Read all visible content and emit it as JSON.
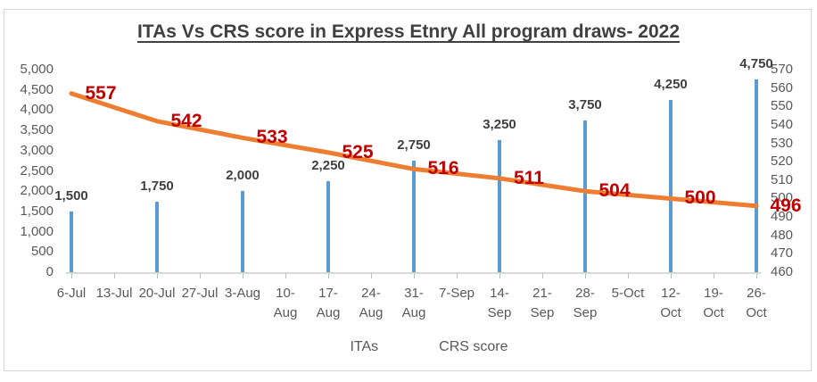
{
  "title": "ITAs Vs CRS score in Express Etnry All program draws- 2022",
  "colors": {
    "bar": "#5B9BD5",
    "line": "#ED7D31",
    "crs_label": "#C00000",
    "bar_label": "#404040",
    "axis_text": "#595959",
    "axis_line": "#D9D9D9"
  },
  "legend": {
    "items": [
      {
        "label": "ITAs",
        "swatch": "bar-swatch",
        "color": "#5B9BD5"
      },
      {
        "label": "CRS score",
        "swatch": "line-swatch",
        "color": "#ED7D31"
      }
    ]
  },
  "chart_data": {
    "type": "bar+line combo",
    "title": "ITAs Vs CRS score in Express Etnry All program draws- 2022",
    "categories": [
      "6-Jul",
      "13-Jul",
      "20-Jul",
      "27-Jul",
      "3-Aug",
      "10-Aug",
      "17-Aug",
      "24-Aug",
      "31-Aug",
      "7-Sep",
      "14-Sep",
      "21-Sep",
      "28-Sep",
      "5-Oct",
      "12-Oct",
      "19-Oct",
      "26-Oct"
    ],
    "x_tick_display": [
      [
        "6-Jul"
      ],
      [
        "13-Jul"
      ],
      [
        "20-Jul"
      ],
      [
        "27-Jul"
      ],
      [
        "3-Aug"
      ],
      [
        "10-",
        "Aug"
      ],
      [
        "17-",
        "Aug"
      ],
      [
        "24-",
        "Aug"
      ],
      [
        "31-",
        "Aug"
      ],
      [
        "7-Sep"
      ],
      [
        "14-",
        "Sep"
      ],
      [
        "21-",
        "Sep"
      ],
      [
        "28-",
        "Sep"
      ],
      [
        "5-Oct"
      ],
      [
        "12-",
        "Oct"
      ],
      [
        "19-",
        "Oct"
      ],
      [
        "26-",
        "Oct"
      ]
    ],
    "series": [
      {
        "name": "ITAs",
        "type": "bar",
        "axis": "left",
        "color": "#5B9BD5",
        "points": [
          {
            "category": "6-Jul",
            "value": 1500,
            "label": "1,500"
          },
          {
            "category": "20-Jul",
            "value": 1750,
            "label": "1,750"
          },
          {
            "category": "3-Aug",
            "value": 2000,
            "label": "2,000"
          },
          {
            "category": "17-Aug",
            "value": 2250,
            "label": "2,250"
          },
          {
            "category": "31-Aug",
            "value": 2750,
            "label": "2,750"
          },
          {
            "category": "14-Sep",
            "value": 3250,
            "label": "3,250"
          },
          {
            "category": "28-Sep",
            "value": 3750,
            "label": "3,750"
          },
          {
            "category": "12-Oct",
            "value": 4250,
            "label": "4,250"
          },
          {
            "category": "26-Oct",
            "value": 4750,
            "label": "4,750"
          }
        ]
      },
      {
        "name": "CRS score",
        "type": "line",
        "axis": "right",
        "color": "#ED7D31",
        "points": [
          {
            "category": "6-Jul",
            "value": 557,
            "label": "557"
          },
          {
            "category": "20-Jul",
            "value": 542,
            "label": "542"
          },
          {
            "category": "3-Aug",
            "value": 533,
            "label": "533"
          },
          {
            "category": "17-Aug",
            "value": 525,
            "label": "525"
          },
          {
            "category": "31-Aug",
            "value": 516,
            "label": "516"
          },
          {
            "category": "14-Sep",
            "value": 511,
            "label": "511"
          },
          {
            "category": "28-Sep",
            "value": 504,
            "label": "504"
          },
          {
            "category": "12-Oct",
            "value": 500,
            "label": "500"
          },
          {
            "category": "26-Oct",
            "value": 496,
            "label": "496"
          }
        ]
      }
    ],
    "left_axis": {
      "min": 0,
      "max": 5000,
      "step": 500,
      "ticks": [
        {
          "value": 0,
          "label": "0"
        },
        {
          "value": 500,
          "label": "500"
        },
        {
          "value": 1000,
          "label": "1,000"
        },
        {
          "value": 1500,
          "label": "1,500"
        },
        {
          "value": 2000,
          "label": "2,000"
        },
        {
          "value": 2500,
          "label": "2,500"
        },
        {
          "value": 3000,
          "label": "3,000"
        },
        {
          "value": 3500,
          "label": "3,500"
        },
        {
          "value": 4000,
          "label": "4,000"
        },
        {
          "value": 4500,
          "label": "4,500"
        },
        {
          "value": 5000,
          "label": "5,000"
        }
      ]
    },
    "right_axis": {
      "min": 460,
      "max": 570,
      "step": 10,
      "ticks": [
        {
          "value": 460,
          "label": "460"
        },
        {
          "value": 470,
          "label": "470"
        },
        {
          "value": 480,
          "label": "480"
        },
        {
          "value": 490,
          "label": "490"
        },
        {
          "value": 500,
          "label": "500"
        },
        {
          "value": 510,
          "label": "510"
        },
        {
          "value": 520,
          "label": "520"
        },
        {
          "value": 530,
          "label": "530"
        },
        {
          "value": 540,
          "label": "540"
        },
        {
          "value": 550,
          "label": "550"
        },
        {
          "value": 560,
          "label": "560"
        },
        {
          "value": 570,
          "label": "570"
        }
      ]
    },
    "grid": "off",
    "legend_position": "bottom"
  }
}
